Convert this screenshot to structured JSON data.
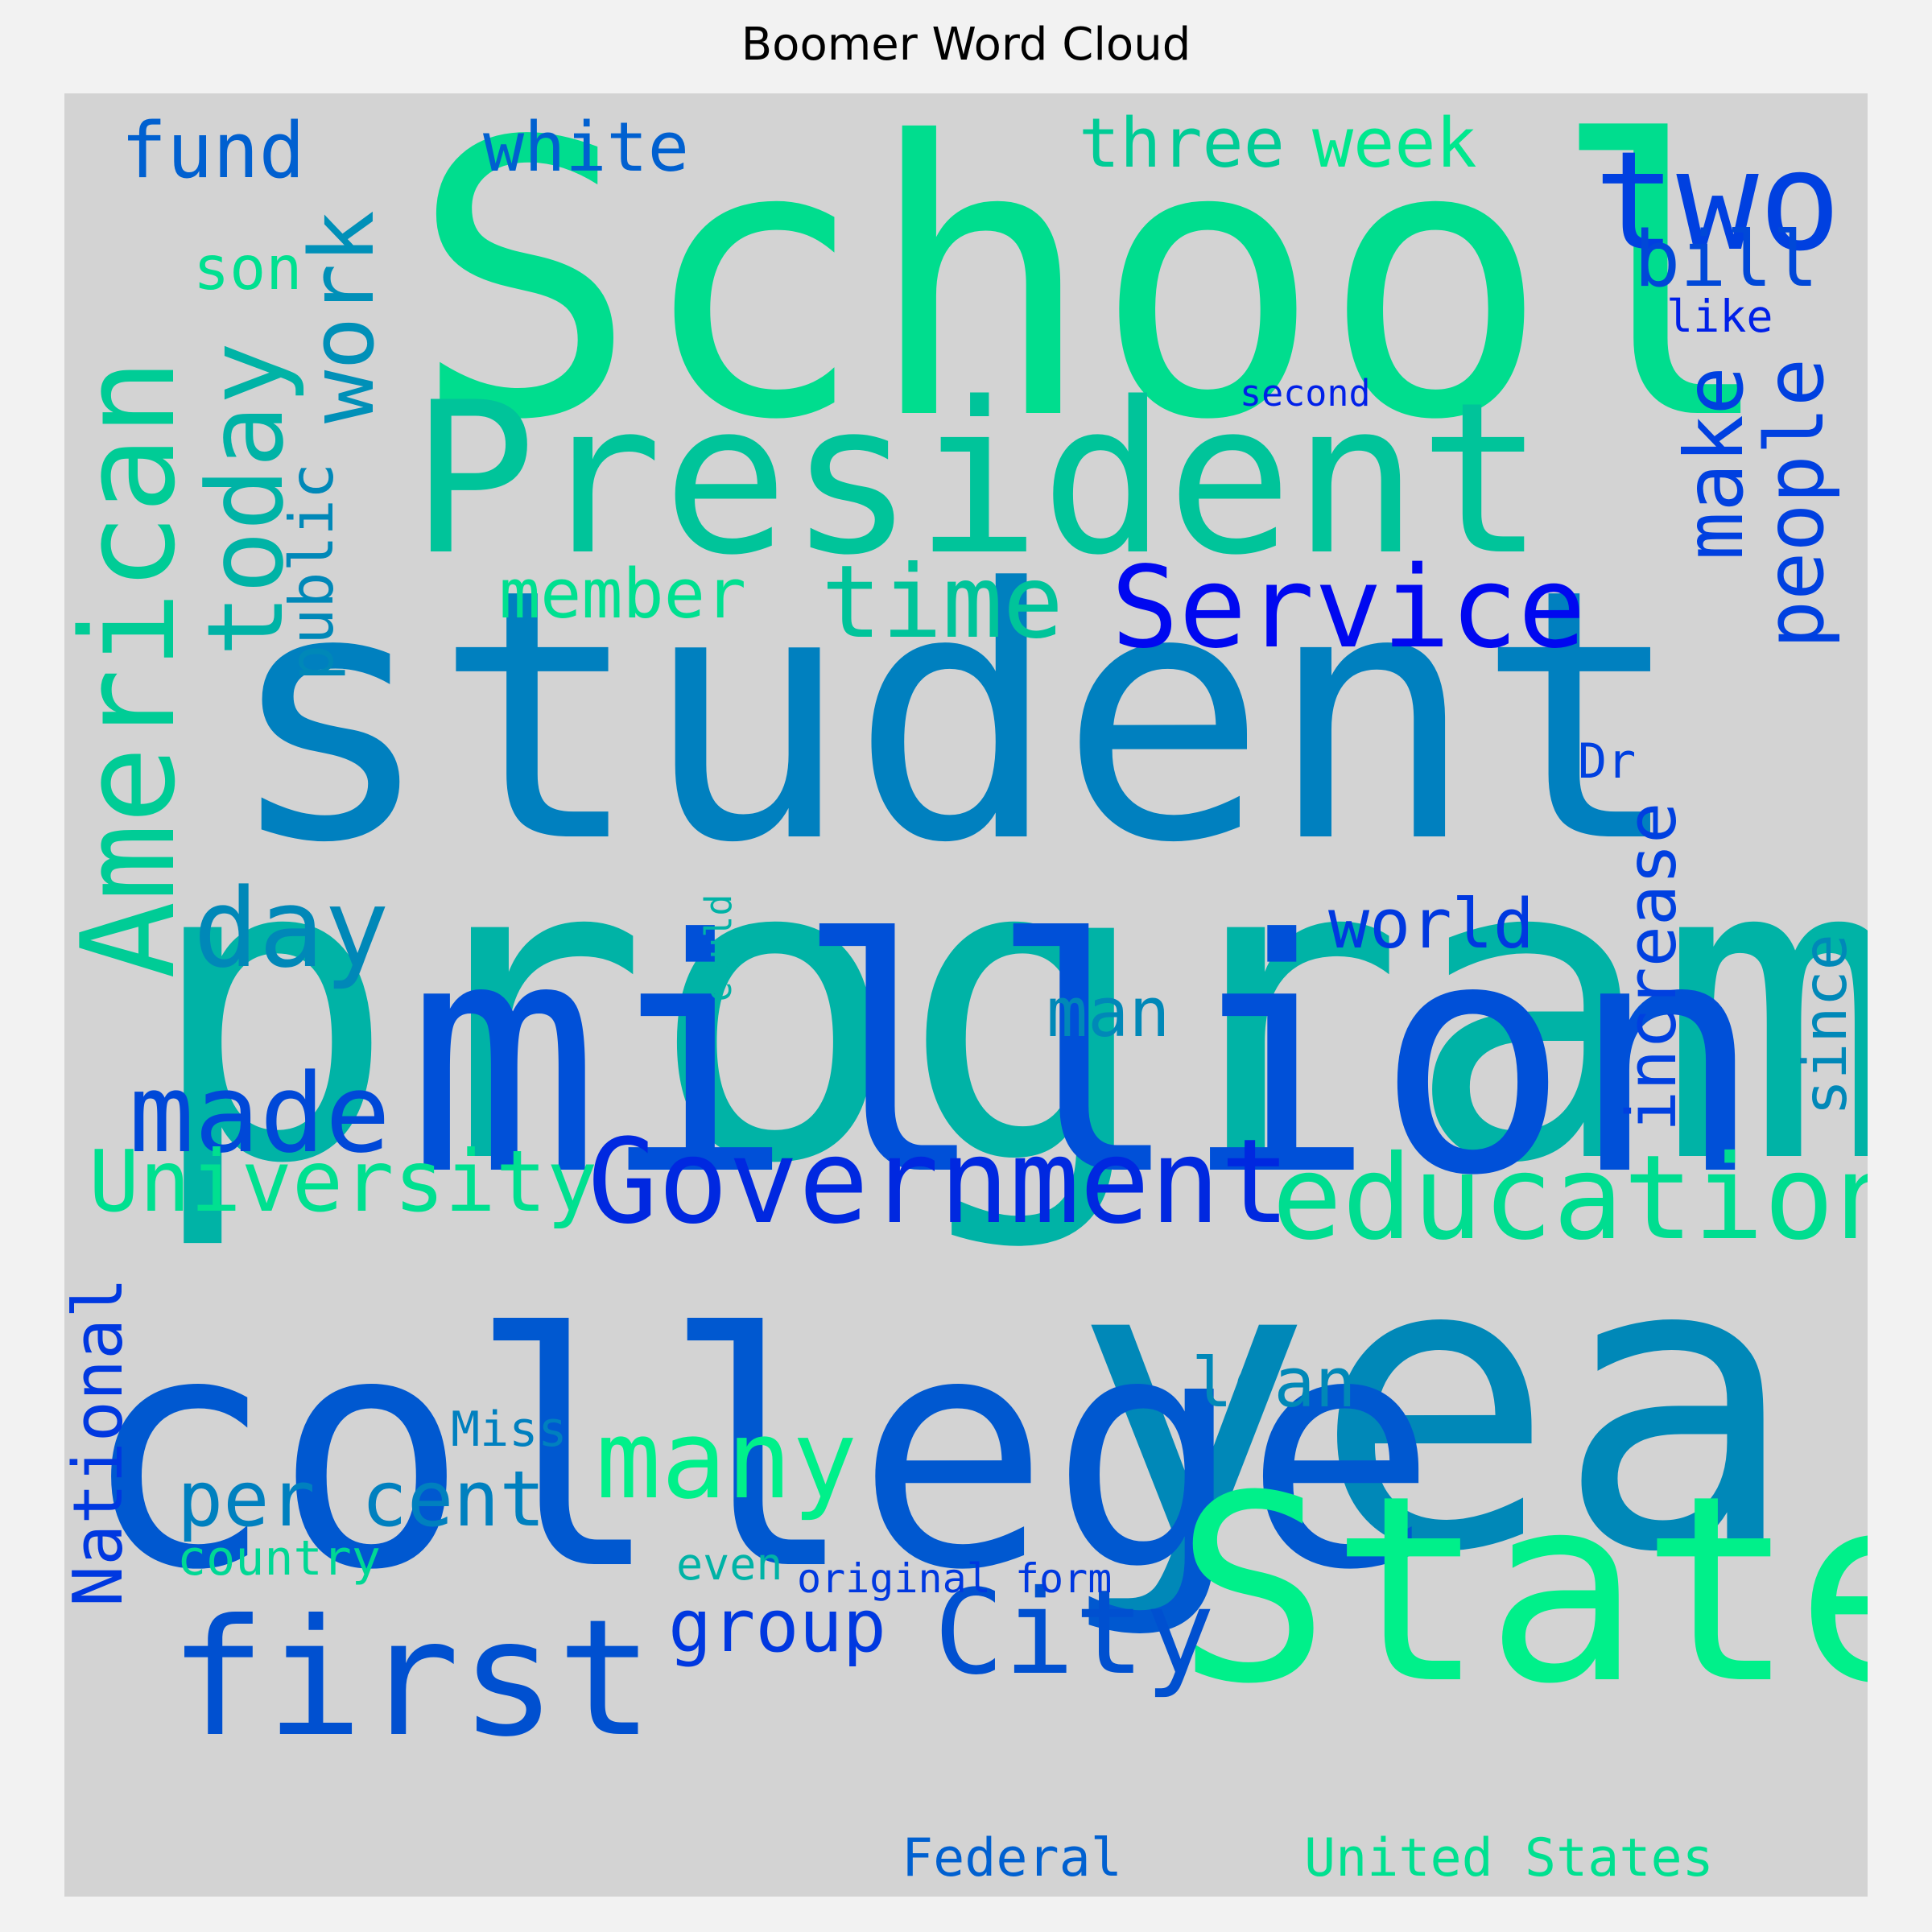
{
  "title": "Boomer Word Cloud",
  "words": [
    {
      "text": "program",
      "color": "#00b3a6",
      "vertical": false
    },
    {
      "text": "student",
      "color": "#0080bf",
      "vertical": false
    },
    {
      "text": "School",
      "color": "#00dd8e",
      "vertical": false
    },
    {
      "text": "million",
      "color": "#0050d8",
      "vertical": false
    },
    {
      "text": "year",
      "color": "#0088b8",
      "vertical": false
    },
    {
      "text": "college",
      "color": "#0058d0",
      "vertical": false
    },
    {
      "text": "President",
      "color": "#00c49a",
      "vertical": false
    },
    {
      "text": "State",
      "color": "#00f08a",
      "vertical": false
    },
    {
      "text": "American",
      "color": "#00cc96",
      "vertical": true
    },
    {
      "text": "first",
      "color": "#0050d0",
      "vertical": false
    },
    {
      "text": "Government",
      "color": "#0028e0",
      "vertical": false
    },
    {
      "text": "education",
      "color": "#00dd90",
      "vertical": false
    },
    {
      "text": "Service",
      "color": "#0008f0",
      "vertical": false
    },
    {
      "text": "two",
      "color": "#0040e0",
      "vertical": false
    },
    {
      "text": "today",
      "color": "#00b3a6",
      "vertical": true
    },
    {
      "text": "City",
      "color": "#0050d0",
      "vertical": false
    },
    {
      "text": "many",
      "color": "#00f08a",
      "vertical": false
    },
    {
      "text": "day",
      "color": "#0088b8",
      "vertical": false
    },
    {
      "text": "made",
      "color": "#0048d8",
      "vertical": false
    },
    {
      "text": "time",
      "color": "#00c49a",
      "vertical": false
    },
    {
      "text": "work",
      "color": "#0090b8",
      "vertical": true
    },
    {
      "text": "University",
      "color": "#00e090",
      "vertical": false
    },
    {
      "text": "people",
      "color": "#0040e0",
      "vertical": true
    },
    {
      "text": "make",
      "color": "#0040e0",
      "vertical": true
    },
    {
      "text": "per cent",
      "color": "#0080bf",
      "vertical": false
    },
    {
      "text": "increase",
      "color": "#0040e0",
      "vertical": true
    },
    {
      "text": "group",
      "color": "#0038e0",
      "vertical": false
    },
    {
      "text": "National",
      "color": "#0038e0",
      "vertical": true
    },
    {
      "text": "bill",
      "color": "#0048d8",
      "vertical": false
    },
    {
      "text": "fund",
      "color": "#0060d0",
      "vertical": false
    },
    {
      "text": "white",
      "color": "#0060d0",
      "vertical": false
    },
    {
      "text": "three",
      "color": "#00cc96",
      "vertical": false
    },
    {
      "text": "week",
      "color": "#00e88e",
      "vertical": false
    },
    {
      "text": "member",
      "color": "#00e090",
      "vertical": false
    },
    {
      "text": "world",
      "color": "#0038e0",
      "vertical": false
    },
    {
      "text": "loan",
      "color": "#0088b8",
      "vertical": false
    },
    {
      "text": "man",
      "color": "#0088b8",
      "vertical": false
    },
    {
      "text": "public",
      "color": "#0088b8",
      "vertical": true
    },
    {
      "text": "since",
      "color": "#0088b8",
      "vertical": true
    },
    {
      "text": "son",
      "color": "#00e090",
      "vertical": false
    },
    {
      "text": "United States",
      "color": "#00e090",
      "vertical": false
    },
    {
      "text": "Federal",
      "color": "#0060d0",
      "vertical": false
    },
    {
      "text": "country",
      "color": "#00d894",
      "vertical": false
    },
    {
      "text": "Miss",
      "color": "#0080bf",
      "vertical": false
    },
    {
      "text": "even",
      "color": "#00b3a6",
      "vertical": false
    },
    {
      "text": "original form",
      "color": "#0038e0",
      "vertical": false
    },
    {
      "text": "Dr",
      "color": "#0040e0",
      "vertical": false
    },
    {
      "text": "like",
      "color": "#0020e8",
      "vertical": false
    },
    {
      "text": "second",
      "color": "#0020e8",
      "vertical": false
    },
    {
      "text": "could",
      "color": "#00b3a6",
      "vertical": true
    }
  ]
}
